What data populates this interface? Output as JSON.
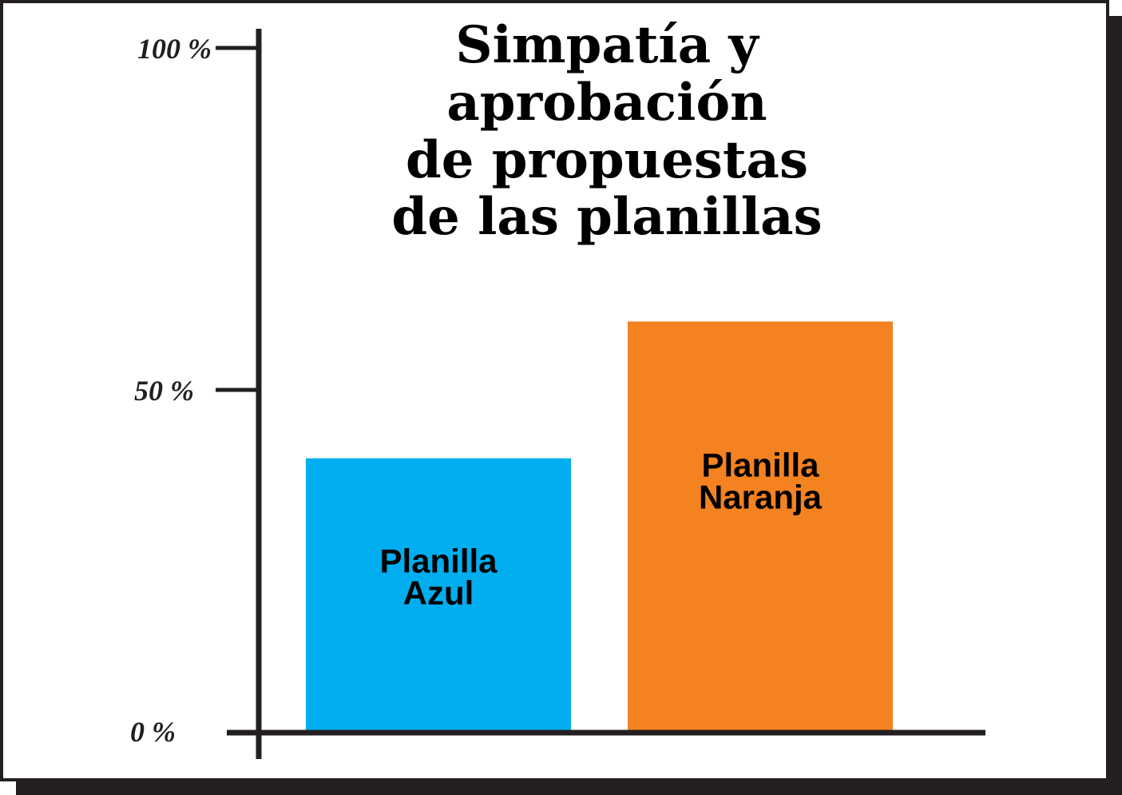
{
  "chart_data": {
    "type": "bar",
    "title_lines": [
      "Simpatía y",
      "aprobación",
      "de propuestas",
      "de las planillas"
    ],
    "categories": [
      "Planilla Azul",
      "Planilla Naranja"
    ],
    "category_label_lines": [
      [
        "Planilla",
        "Azul"
      ],
      [
        "Planilla",
        "Naranja"
      ]
    ],
    "values": [
      40,
      60
    ],
    "colors": [
      "#00aeef",
      "#f58220"
    ],
    "ylim": [
      0,
      100
    ],
    "yticks": [
      {
        "value": 0,
        "label": "0 %"
      },
      {
        "value": 50,
        "label": "50 %"
      },
      {
        "value": 100,
        "label": "100 %"
      }
    ],
    "xlabel": "",
    "ylabel": "",
    "grid": false,
    "legend": "none"
  }
}
